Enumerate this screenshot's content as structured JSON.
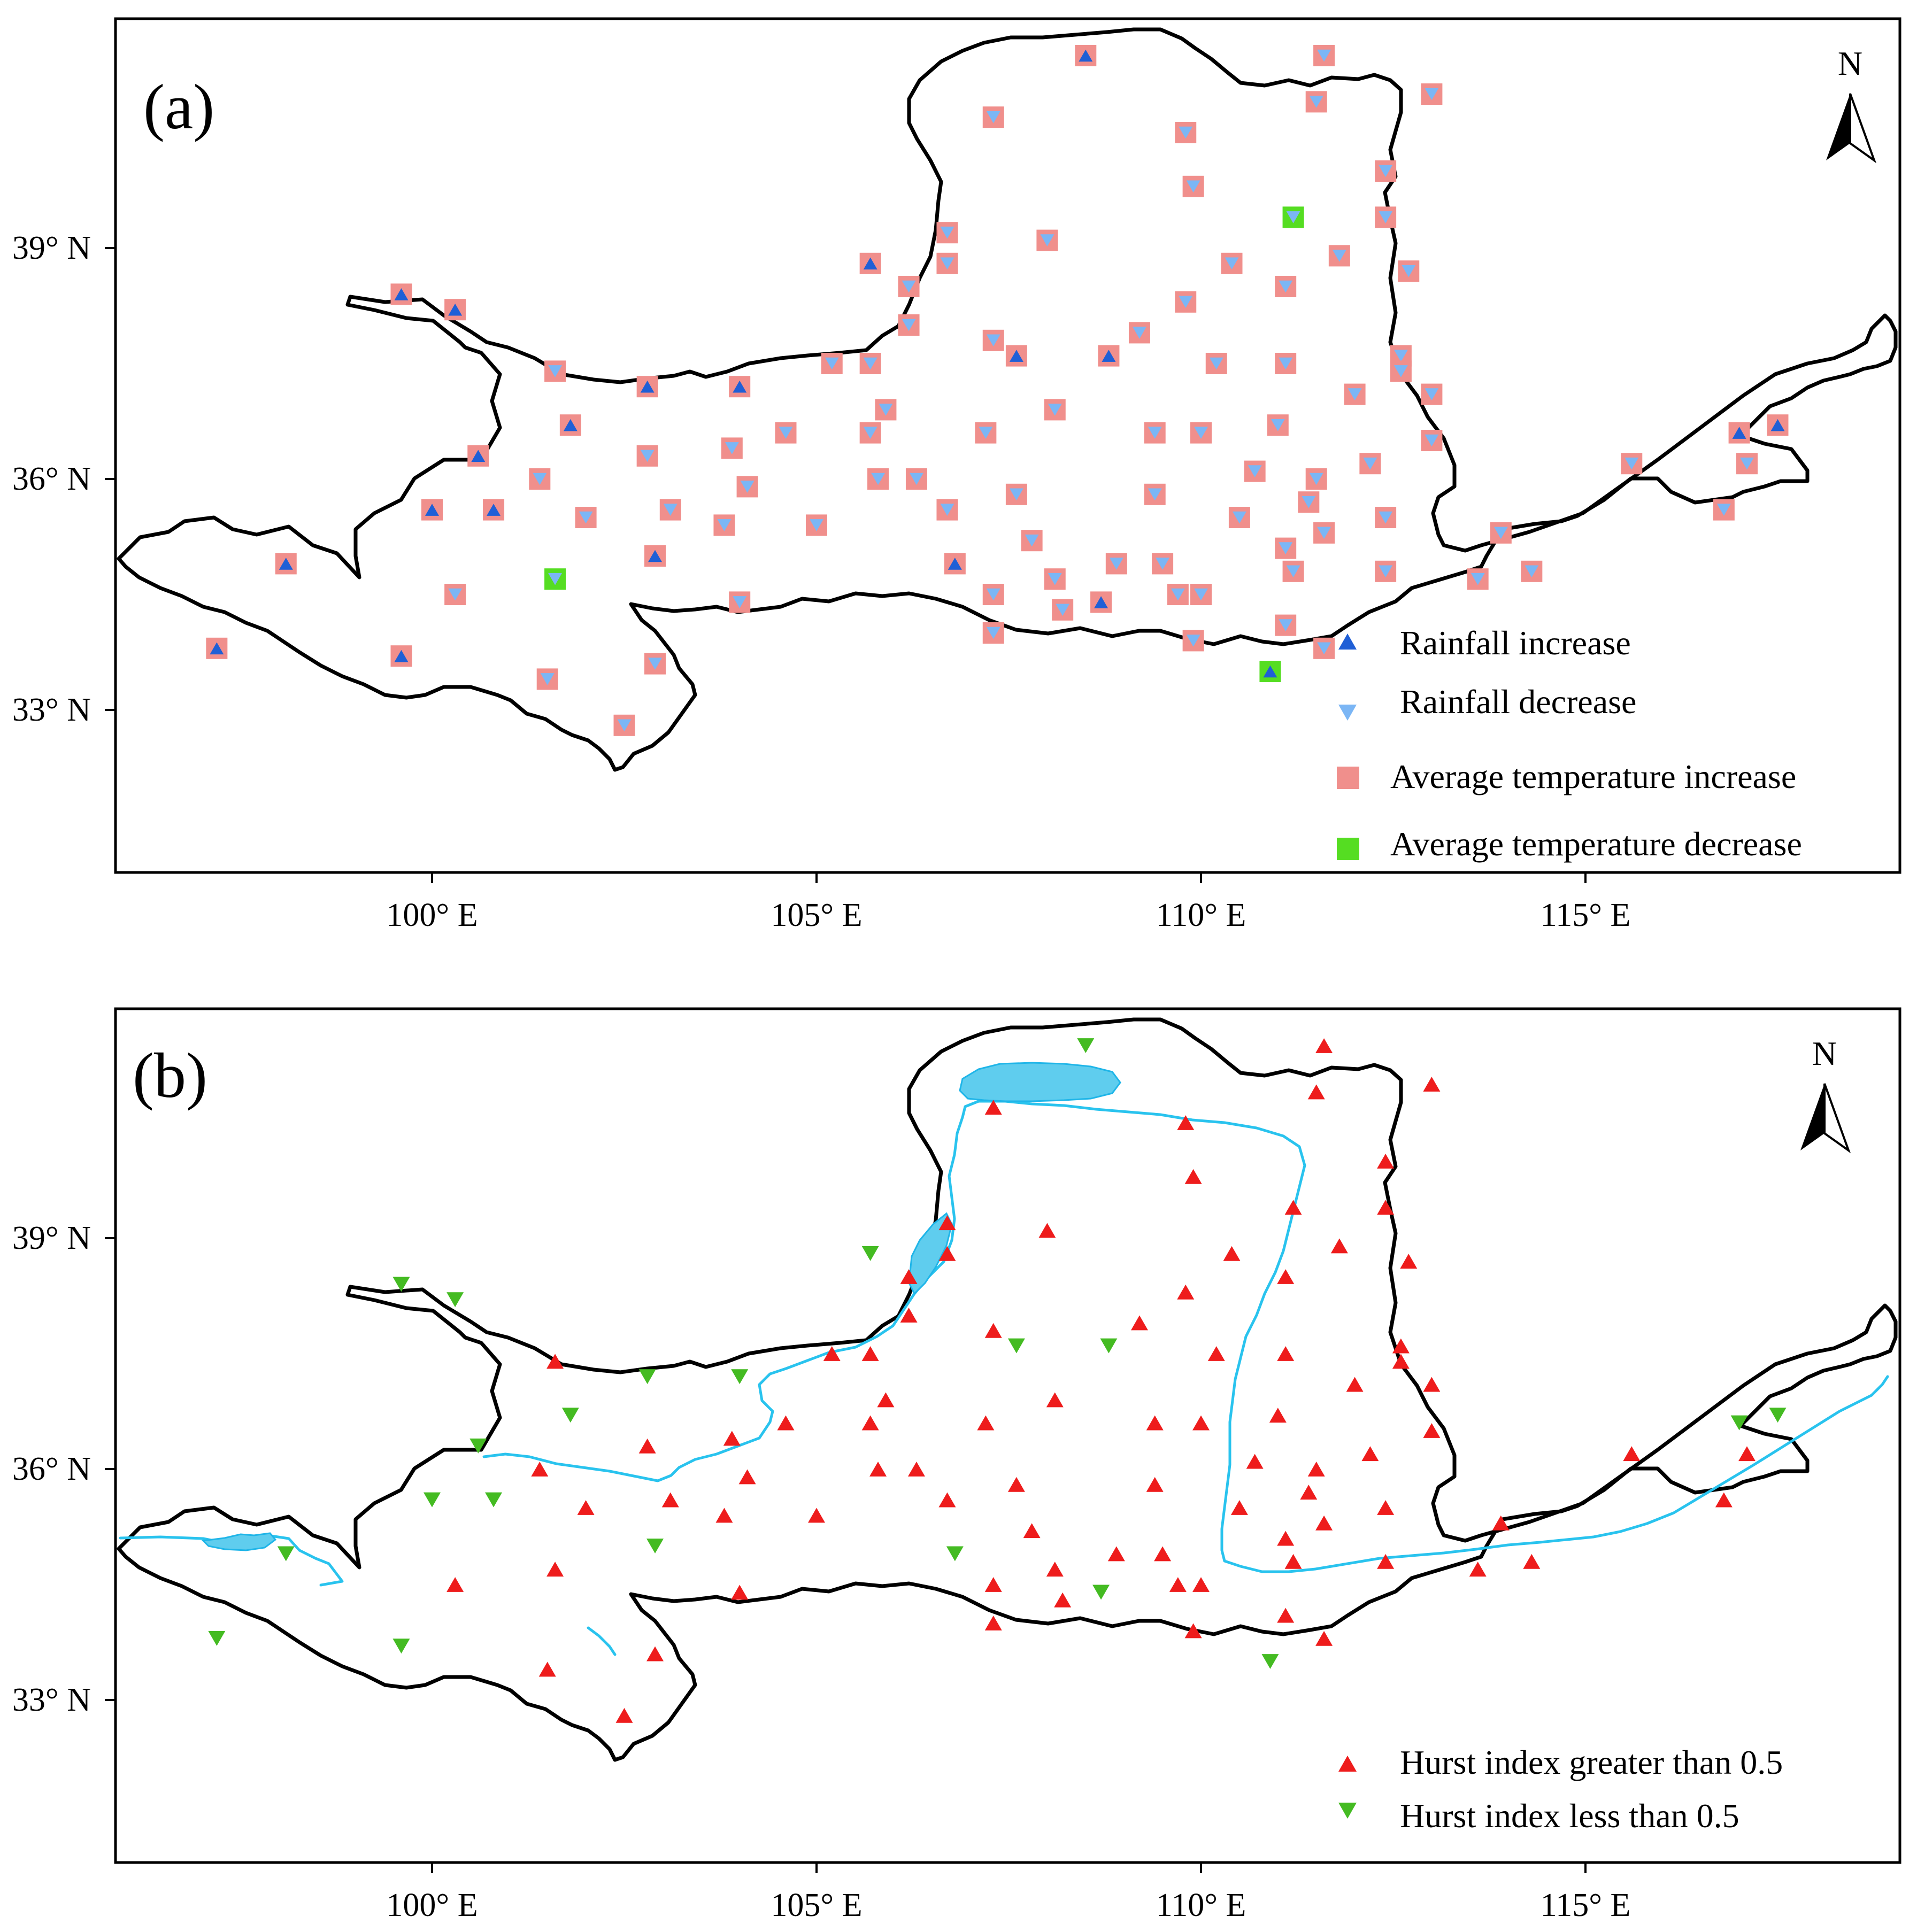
{
  "panels": [
    {
      "id": "a",
      "label": "(a)",
      "legend": [
        {
          "symbol": "triangle-up",
          "color": "#1f5fd6",
          "label": "Rainfall increase"
        },
        {
          "symbol": "triangle-down",
          "color": "#7bb6f5",
          "label": "Rainfall decrease"
        },
        {
          "symbol": "square",
          "color": "#f08f8c",
          "label": "Average temperature increase"
        },
        {
          "symbol": "square",
          "color": "#55dd22",
          "label": "Average temperature decrease"
        }
      ]
    },
    {
      "id": "b",
      "label": "(b)",
      "legend": [
        {
          "symbol": "triangle-up",
          "color": "#ee1c1c",
          "label": "Hurst index greater than 0.5"
        },
        {
          "symbol": "triangle-down",
          "color": "#44bb22",
          "label": "Hurst index less than 0.5"
        }
      ]
    }
  ],
  "north_arrow_label": "N",
  "map": {
    "x_ticks": [
      {
        "value": 100,
        "label": "100° E"
      },
      {
        "value": 105,
        "label": "105° E"
      },
      {
        "value": 110,
        "label": "110° E"
      },
      {
        "value": 115,
        "label": "115° E"
      }
    ],
    "y_ticks": [
      {
        "value": 39,
        "label": "39° N"
      },
      {
        "value": 36,
        "label": "36° N"
      },
      {
        "value": 33,
        "label": "33° N"
      }
    ],
    "colors": {
      "basin_outline": "#000000",
      "river": "#29c3ee",
      "lake": "#5fcdee"
    }
  },
  "chart_data": {
    "type": "map",
    "stations": [
      {
        "lon": 97.2,
        "lat": 33.8,
        "rain": "up",
        "temp": "up",
        "hurst": "down"
      },
      {
        "lon": 98.1,
        "lat": 34.9,
        "rain": "up",
        "temp": "up",
        "hurst": "down"
      },
      {
        "lon": 99.6,
        "lat": 38.4,
        "rain": "up",
        "temp": "up",
        "hurst": "down"
      },
      {
        "lon": 100.3,
        "lat": 38.2,
        "rain": "up",
        "temp": "up",
        "hurst": "down"
      },
      {
        "lon": 99.6,
        "lat": 33.7,
        "rain": "up",
        "temp": "up",
        "hurst": "down"
      },
      {
        "lon": 100.0,
        "lat": 35.6,
        "rain": "up",
        "temp": "up",
        "hurst": "down"
      },
      {
        "lon": 100.6,
        "lat": 36.3,
        "rain": "up",
        "temp": "up",
        "hurst": "down"
      },
      {
        "lon": 100.8,
        "lat": 35.6,
        "rain": "up",
        "temp": "up",
        "hurst": "down"
      },
      {
        "lon": 100.3,
        "lat": 34.5,
        "rain": "down",
        "temp": "up",
        "hurst": "up"
      },
      {
        "lon": 101.4,
        "lat": 36.0,
        "rain": "down",
        "temp": "up",
        "hurst": "up"
      },
      {
        "lon": 101.6,
        "lat": 37.4,
        "rain": "down",
        "temp": "up",
        "hurst": "up"
      },
      {
        "lon": 101.8,
        "lat": 36.7,
        "rain": "up",
        "temp": "up",
        "hurst": "down"
      },
      {
        "lon": 101.6,
        "lat": 34.7,
        "rain": "down",
        "temp": "down",
        "hurst": "up"
      },
      {
        "lon": 101.5,
        "lat": 33.4,
        "rain": "down",
        "temp": "up",
        "hurst": "up"
      },
      {
        "lon": 102.0,
        "lat": 35.5,
        "rain": "down",
        "temp": "up",
        "hurst": "up"
      },
      {
        "lon": 102.8,
        "lat": 37.2,
        "rain": "up",
        "temp": "up",
        "hurst": "down"
      },
      {
        "lon": 102.8,
        "lat": 36.3,
        "rain": "down",
        "temp": "up",
        "hurst": "up"
      },
      {
        "lon": 102.9,
        "lat": 35.0,
        "rain": "up",
        "temp": "up",
        "hurst": "down"
      },
      {
        "lon": 103.1,
        "lat": 35.6,
        "rain": "down",
        "temp": "up",
        "hurst": "up"
      },
      {
        "lon": 102.9,
        "lat": 33.6,
        "rain": "down",
        "temp": "up",
        "hurst": "up"
      },
      {
        "lon": 102.5,
        "lat": 32.8,
        "rain": "down",
        "temp": "up",
        "hurst": "up"
      },
      {
        "lon": 104.0,
        "lat": 37.2,
        "rain": "up",
        "temp": "up",
        "hurst": "down"
      },
      {
        "lon": 103.9,
        "lat": 36.4,
        "rain": "down",
        "temp": "up",
        "hurst": "up"
      },
      {
        "lon": 104.1,
        "lat": 35.9,
        "rain": "down",
        "temp": "up",
        "hurst": "up"
      },
      {
        "lon": 103.8,
        "lat": 35.4,
        "rain": "down",
        "temp": "up",
        "hurst": "up"
      },
      {
        "lon": 104.0,
        "lat": 34.4,
        "rain": "down",
        "temp": "up",
        "hurst": "up"
      },
      {
        "lon": 104.6,
        "lat": 36.6,
        "rain": "down",
        "temp": "up",
        "hurst": "up"
      },
      {
        "lon": 105.0,
        "lat": 35.4,
        "rain": "down",
        "temp": "up",
        "hurst": "up"
      },
      {
        "lon": 105.2,
        "lat": 37.5,
        "rain": "down",
        "temp": "up",
        "hurst": "up"
      },
      {
        "lon": 105.7,
        "lat": 38.8,
        "rain": "up",
        "temp": "up",
        "hurst": "down"
      },
      {
        "lon": 105.7,
        "lat": 37.5,
        "rain": "down",
        "temp": "up",
        "hurst": "up"
      },
      {
        "lon": 105.7,
        "lat": 36.6,
        "rain": "down",
        "temp": "up",
        "hurst": "up"
      },
      {
        "lon": 105.8,
        "lat": 36.0,
        "rain": "down",
        "temp": "up",
        "hurst": "up"
      },
      {
        "lon": 105.9,
        "lat": 36.9,
        "rain": "down",
        "temp": "up",
        "hurst": "up"
      },
      {
        "lon": 106.2,
        "lat": 38.5,
        "rain": "down",
        "temp": "up",
        "hurst": "up"
      },
      {
        "lon": 106.2,
        "lat": 38.0,
        "rain": "down",
        "temp": "up",
        "hurst": "up"
      },
      {
        "lon": 106.3,
        "lat": 36.0,
        "rain": "down",
        "temp": "up",
        "hurst": "up"
      },
      {
        "lon": 106.7,
        "lat": 39.2,
        "rain": "down",
        "temp": "up",
        "hurst": "up"
      },
      {
        "lon": 106.7,
        "lat": 38.8,
        "rain": "down",
        "temp": "up",
        "hurst": "up"
      },
      {
        "lon": 106.7,
        "lat": 35.6,
        "rain": "down",
        "temp": "up",
        "hurst": "up"
      },
      {
        "lon": 106.8,
        "lat": 34.9,
        "rain": "up",
        "temp": "up",
        "hurst": "down"
      },
      {
        "lon": 107.3,
        "lat": 40.7,
        "rain": "down",
        "temp": "up",
        "hurst": "up"
      },
      {
        "lon": 107.3,
        "lat": 37.8,
        "rain": "down",
        "temp": "up",
        "hurst": "up"
      },
      {
        "lon": 107.2,
        "lat": 36.6,
        "rain": "down",
        "temp": "up",
        "hurst": "up"
      },
      {
        "lon": 107.3,
        "lat": 34.5,
        "rain": "down",
        "temp": "up",
        "hurst": "up"
      },
      {
        "lon": 107.3,
        "lat": 34.0,
        "rain": "down",
        "temp": "up",
        "hurst": "up"
      },
      {
        "lon": 107.6,
        "lat": 37.6,
        "rain": "up",
        "temp": "up",
        "hurst": "down"
      },
      {
        "lon": 107.6,
        "lat": 35.8,
        "rain": "down",
        "temp": "up",
        "hurst": "up"
      },
      {
        "lon": 107.8,
        "lat": 35.2,
        "rain": "down",
        "temp": "up",
        "hurst": "up"
      },
      {
        "lon": 108.0,
        "lat": 39.1,
        "rain": "down",
        "temp": "up",
        "hurst": "up"
      },
      {
        "lon": 108.1,
        "lat": 36.9,
        "rain": "down",
        "temp": "up",
        "hurst": "up"
      },
      {
        "lon": 108.1,
        "lat": 34.7,
        "rain": "down",
        "temp": "up",
        "hurst": "up"
      },
      {
        "lon": 108.2,
        "lat": 34.3,
        "rain": "down",
        "temp": "up",
        "hurst": "up"
      },
      {
        "lon": 108.5,
        "lat": 41.5,
        "rain": "up",
        "temp": "up",
        "hurst": "down"
      },
      {
        "lon": 108.7,
        "lat": 34.4,
        "rain": "up",
        "temp": "up",
        "hurst": "down"
      },
      {
        "lon": 108.8,
        "lat": 37.6,
        "rain": "up",
        "temp": "up",
        "hurst": "down"
      },
      {
        "lon": 108.9,
        "lat": 34.9,
        "rain": "down",
        "temp": "up",
        "hurst": "up"
      },
      {
        "lon": 109.2,
        "lat": 37.9,
        "rain": "down",
        "temp": "up",
        "hurst": "up"
      },
      {
        "lon": 109.4,
        "lat": 36.6,
        "rain": "down",
        "temp": "up",
        "hurst": "up"
      },
      {
        "lon": 109.4,
        "lat": 35.8,
        "rain": "down",
        "temp": "up",
        "hurst": "up"
      },
      {
        "lon": 109.5,
        "lat": 34.9,
        "rain": "down",
        "temp": "up",
        "hurst": "up"
      },
      {
        "lon": 109.8,
        "lat": 40.5,
        "rain": "down",
        "temp": "up",
        "hurst": "up"
      },
      {
        "lon": 109.8,
        "lat": 38.3,
        "rain": "down",
        "temp": "up",
        "hurst": "up"
      },
      {
        "lon": 109.7,
        "lat": 34.5,
        "rain": "down",
        "temp": "up",
        "hurst": "up"
      },
      {
        "lon": 109.9,
        "lat": 39.8,
        "rain": "down",
        "temp": "up",
        "hurst": "up"
      },
      {
        "lon": 110.0,
        "lat": 36.6,
        "rain": "down",
        "temp": "up",
        "hurst": "up"
      },
      {
        "lon": 110.0,
        "lat": 34.5,
        "rain": "down",
        "temp": "up",
        "hurst": "up"
      },
      {
        "lon": 109.9,
        "lat": 33.9,
        "rain": "down",
        "temp": "up",
        "hurst": "up"
      },
      {
        "lon": 110.2,
        "lat": 37.5,
        "rain": "down",
        "temp": "up",
        "hurst": "up"
      },
      {
        "lon": 110.4,
        "lat": 38.8,
        "rain": "down",
        "temp": "up",
        "hurst": "up"
      },
      {
        "lon": 110.5,
        "lat": 35.5,
        "rain": "down",
        "temp": "up",
        "hurst": "up"
      },
      {
        "lon": 110.7,
        "lat": 36.1,
        "rain": "down",
        "temp": "up",
        "hurst": "up"
      },
      {
        "lon": 110.9,
        "lat": 33.5,
        "rain": "up",
        "temp": "down",
        "hurst": "down"
      },
      {
        "lon": 111.0,
        "lat": 36.7,
        "rain": "down",
        "temp": "up",
        "hurst": "up"
      },
      {
        "lon": 111.1,
        "lat": 38.5,
        "rain": "down",
        "temp": "up",
        "hurst": "up"
      },
      {
        "lon": 111.1,
        "lat": 37.5,
        "rain": "down",
        "temp": "up",
        "hurst": "up"
      },
      {
        "lon": 111.1,
        "lat": 35.1,
        "rain": "down",
        "temp": "up",
        "hurst": "up"
      },
      {
        "lon": 111.1,
        "lat": 34.1,
        "rain": "down",
        "temp": "up",
        "hurst": "up"
      },
      {
        "lon": 111.2,
        "lat": 39.4,
        "rain": "down",
        "temp": "down",
        "hurst": "up"
      },
      {
        "lon": 111.2,
        "lat": 34.8,
        "rain": "down",
        "temp": "up",
        "hurst": "up"
      },
      {
        "lon": 111.4,
        "lat": 35.7,
        "rain": "down",
        "temp": "up",
        "hurst": "up"
      },
      {
        "lon": 111.5,
        "lat": 40.9,
        "rain": "down",
        "temp": "up",
        "hurst": "up"
      },
      {
        "lon": 111.5,
        "lat": 36.0,
        "rain": "down",
        "temp": "up",
        "hurst": "up"
      },
      {
        "lon": 111.6,
        "lat": 41.5,
        "rain": "down",
        "temp": "up",
        "hurst": "up"
      },
      {
        "lon": 111.6,
        "lat": 35.3,
        "rain": "down",
        "temp": "up",
        "hurst": "up"
      },
      {
        "lon": 111.6,
        "lat": 33.8,
        "rain": "down",
        "temp": "up",
        "hurst": "up"
      },
      {
        "lon": 111.8,
        "lat": 38.9,
        "rain": "down",
        "temp": "up",
        "hurst": "up"
      },
      {
        "lon": 112.0,
        "lat": 37.1,
        "rain": "down",
        "temp": "up",
        "hurst": "up"
      },
      {
        "lon": 112.2,
        "lat": 36.2,
        "rain": "down",
        "temp": "up",
        "hurst": "up"
      },
      {
        "lon": 112.4,
        "lat": 40.0,
        "rain": "down",
        "temp": "up",
        "hurst": "up"
      },
      {
        "lon": 112.4,
        "lat": 39.4,
        "rain": "down",
        "temp": "up",
        "hurst": "up"
      },
      {
        "lon": 112.4,
        "lat": 35.5,
        "rain": "down",
        "temp": "up",
        "hurst": "up"
      },
      {
        "lon": 112.4,
        "lat": 34.8,
        "rain": "down",
        "temp": "up",
        "hurst": "up"
      },
      {
        "lon": 112.6,
        "lat": 37.6,
        "rain": "down",
        "temp": "up",
        "hurst": "up"
      },
      {
        "lon": 112.6,
        "lat": 37.4,
        "rain": "down",
        "temp": "up",
        "hurst": "up"
      },
      {
        "lon": 112.7,
        "lat": 38.7,
        "rain": "down",
        "temp": "up",
        "hurst": "up"
      },
      {
        "lon": 113.0,
        "lat": 41.0,
        "rain": "down",
        "temp": "up",
        "hurst": "up"
      },
      {
        "lon": 113.0,
        "lat": 37.1,
        "rain": "down",
        "temp": "up",
        "hurst": "up"
      },
      {
        "lon": 113.0,
        "lat": 36.5,
        "rain": "down",
        "temp": "up",
        "hurst": "up"
      },
      {
        "lon": 113.6,
        "lat": 34.7,
        "rain": "down",
        "temp": "up",
        "hurst": "up"
      },
      {
        "lon": 113.9,
        "lat": 35.3,
        "rain": "down",
        "temp": "up",
        "hurst": "up"
      },
      {
        "lon": 114.3,
        "lat": 34.8,
        "rain": "down",
        "temp": "up",
        "hurst": "up"
      },
      {
        "lon": 115.6,
        "lat": 36.2,
        "rain": "down",
        "temp": "up",
        "hurst": "up"
      },
      {
        "lon": 116.8,
        "lat": 35.6,
        "rain": "down",
        "temp": "up",
        "hurst": "up"
      },
      {
        "lon": 117.0,
        "lat": 36.6,
        "rain": "up",
        "temp": "up",
        "hurst": "down"
      },
      {
        "lon": 117.1,
        "lat": 36.2,
        "rain": "down",
        "temp": "up",
        "hurst": "up"
      },
      {
        "lon": 117.5,
        "lat": 36.7,
        "rain": "up",
        "temp": "up",
        "hurst": "down"
      }
    ]
  }
}
